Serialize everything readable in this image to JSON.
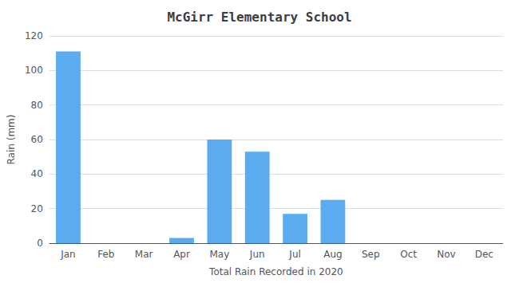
{
  "chart_data": {
    "type": "bar",
    "title": "McGirr Elementary School",
    "xlabel": "Total Rain Recorded in 2020",
    "ylabel": "Rain (mm)",
    "categories": [
      "Jan",
      "Feb",
      "Mar",
      "Apr",
      "May",
      "Jun",
      "Jul",
      "Aug",
      "Sep",
      "Oct",
      "Nov",
      "Dec"
    ],
    "values": [
      111,
      0,
      0,
      3,
      60,
      53,
      17,
      25,
      0,
      0,
      0,
      0
    ],
    "color": "#5aabf0",
    "ylim": [
      0,
      120
    ],
    "yticks": [
      0,
      20,
      40,
      60,
      80,
      100,
      120
    ],
    "grid": true
  }
}
